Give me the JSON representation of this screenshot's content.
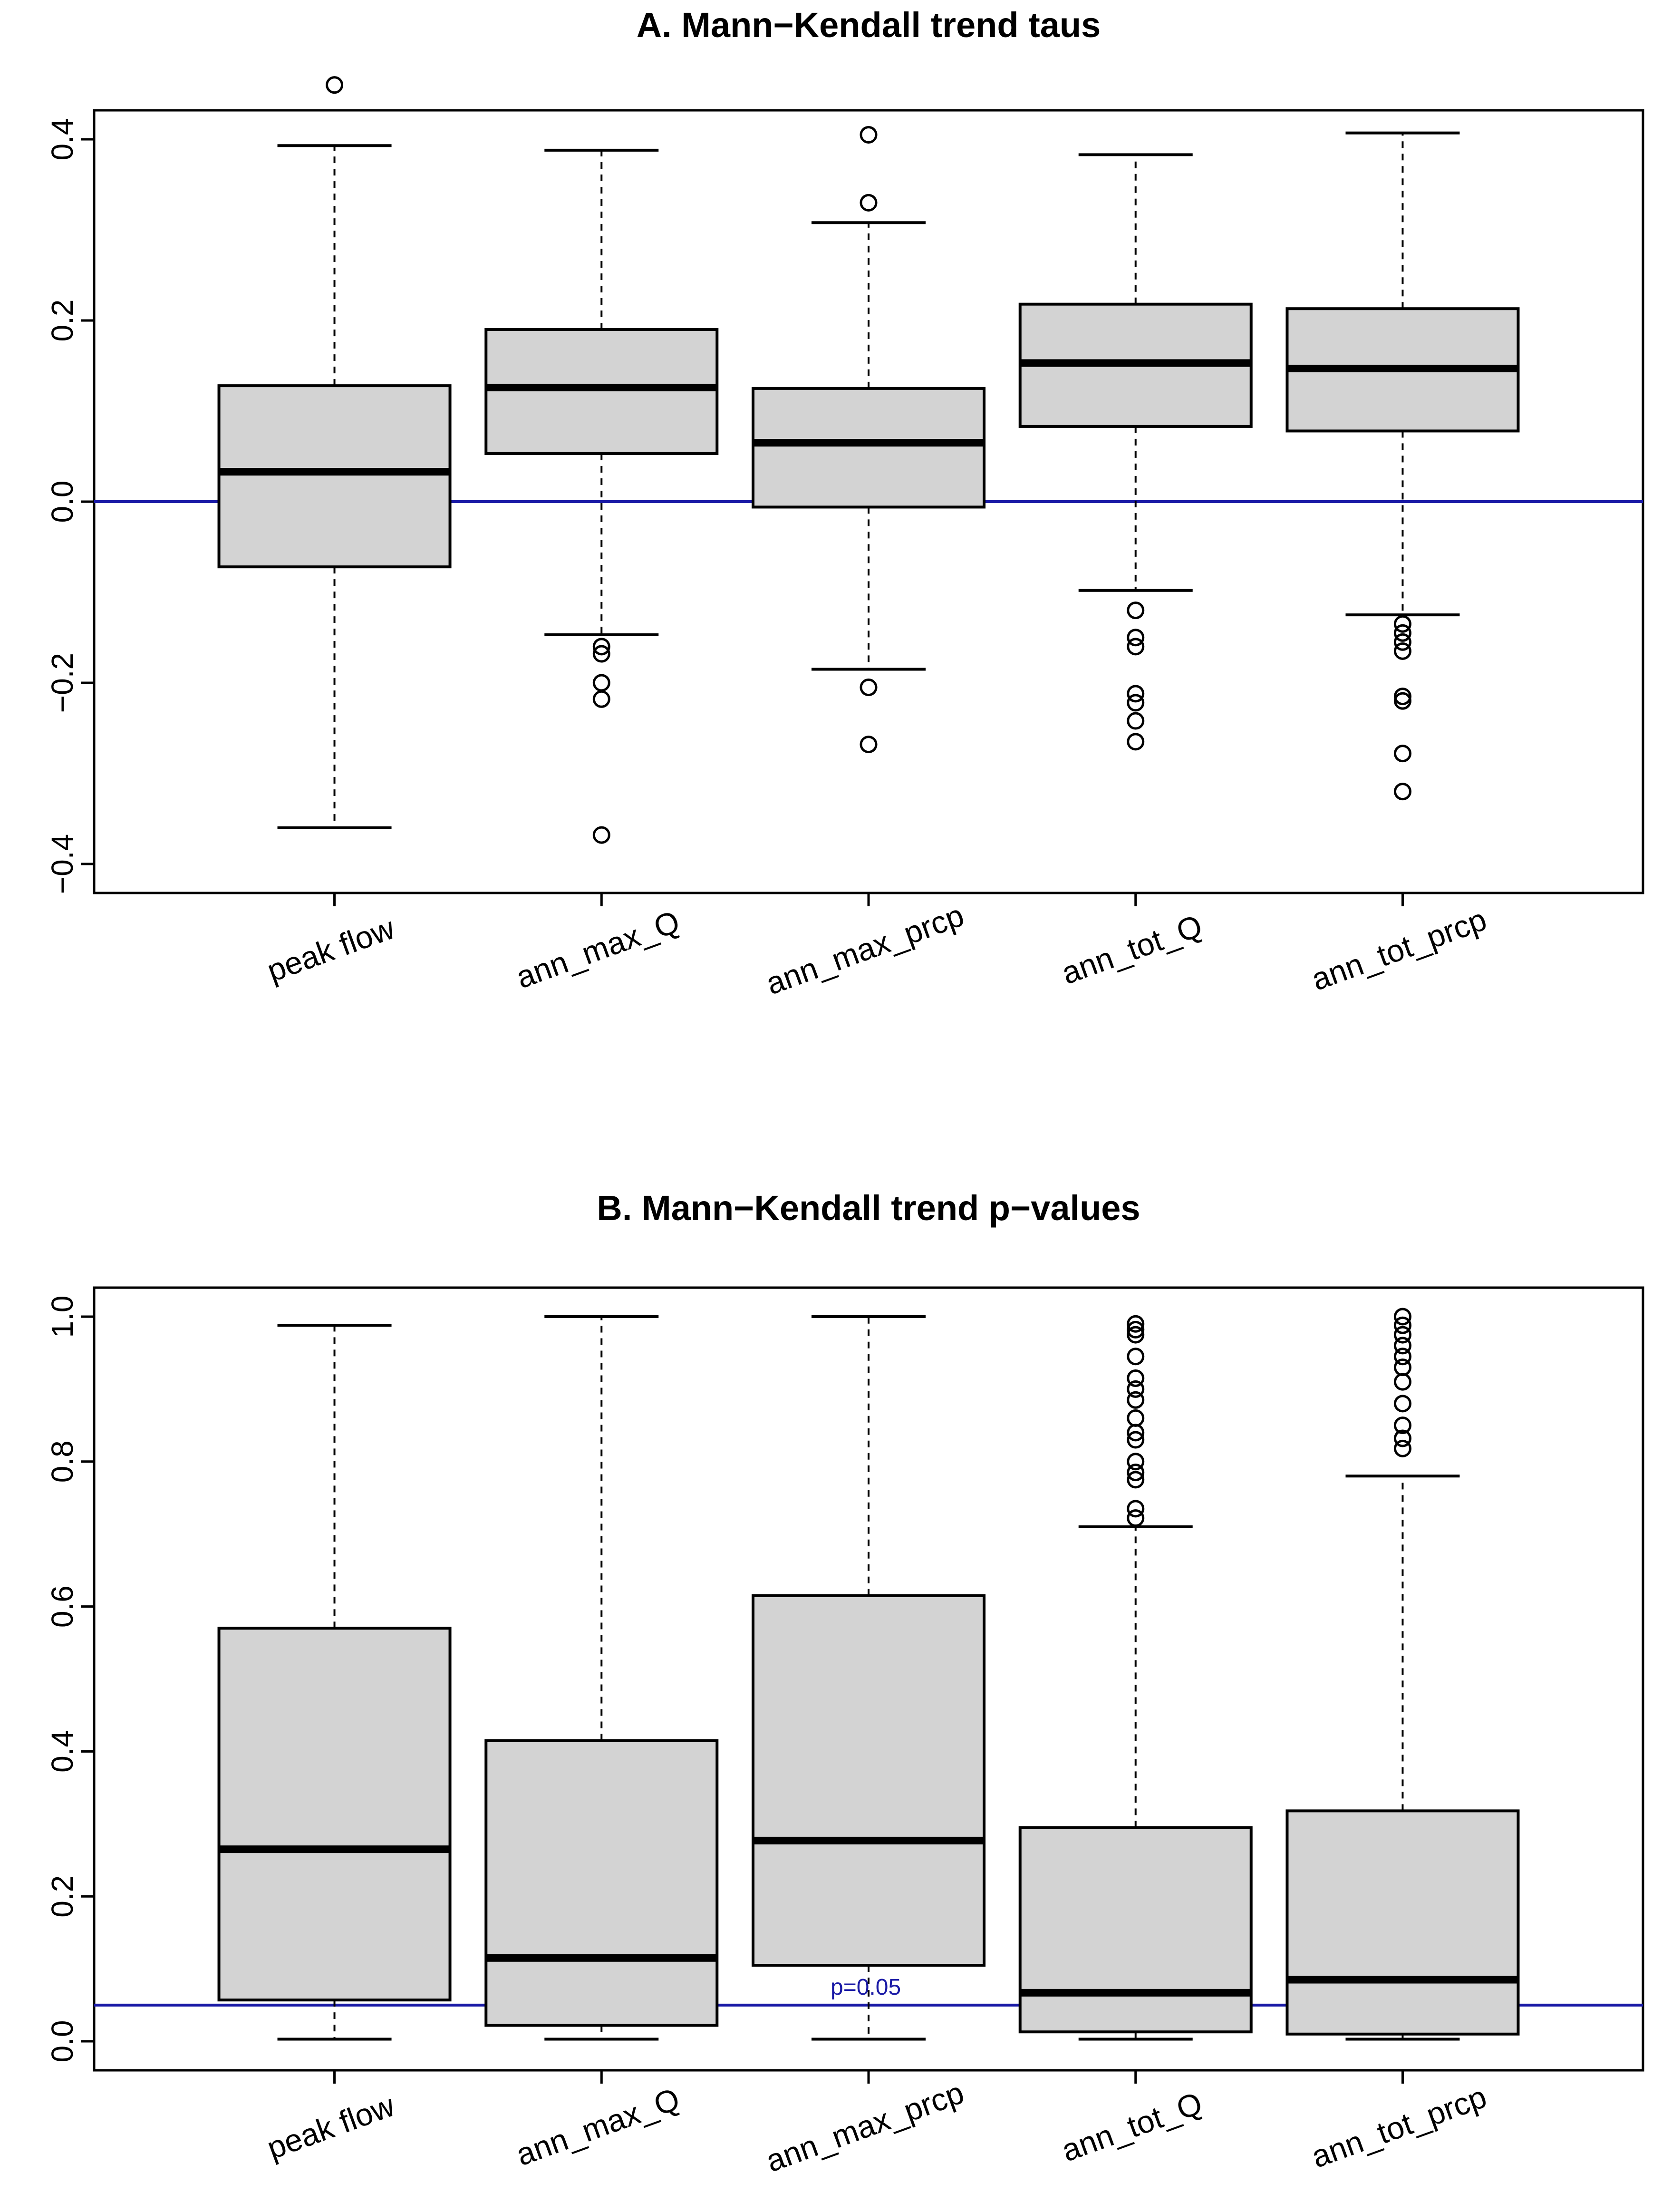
{
  "chart_data": [
    {
      "type": "box",
      "title": "A. Mann−Kendall trend taus",
      "categories": [
        "peak flow",
        "ann_max_Q",
        "ann_max_prcp",
        "ann_tot_Q",
        "ann_tot_prcp"
      ],
      "ylim": [
        -0.4,
        0.4
      ],
      "yticks": [
        "−0.4",
        "−0.2",
        "0.0",
        "0.2",
        "0.4"
      ],
      "reference_line": {
        "y": 0.0,
        "label": "",
        "color": "#1a1aa6"
      },
      "fill_color": "#d3d3d3",
      "boxes": [
        {
          "whisker_low": -0.36,
          "q1": -0.072,
          "median": 0.033,
          "q3": 0.128,
          "whisker_high": 0.393,
          "outliers": [
            0.46
          ]
        },
        {
          "whisker_low": -0.147,
          "q1": 0.053,
          "median": 0.126,
          "q3": 0.19,
          "whisker_high": 0.388,
          "outliers": [
            -0.16,
            -0.168,
            -0.2,
            -0.218,
            -0.368
          ]
        },
        {
          "whisker_low": -0.185,
          "q1": -0.006,
          "median": 0.065,
          "q3": 0.125,
          "whisker_high": 0.308,
          "outliers": [
            0.33,
            0.405,
            -0.205,
            -0.268
          ]
        },
        {
          "whisker_low": -0.098,
          "q1": 0.083,
          "median": 0.153,
          "q3": 0.218,
          "whisker_high": 0.383,
          "outliers": [
            -0.12,
            -0.15,
            -0.16,
            -0.212,
            -0.222,
            -0.242,
            -0.265
          ]
        },
        {
          "whisker_low": -0.125,
          "q1": 0.078,
          "median": 0.147,
          "q3": 0.213,
          "whisker_high": 0.407,
          "outliers": [
            -0.135,
            -0.145,
            -0.155,
            -0.165,
            -0.215,
            -0.22,
            -0.278,
            -0.32
          ]
        }
      ]
    },
    {
      "type": "box",
      "title": "B. Mann−Kendall trend p−values",
      "categories": [
        "peak flow",
        "ann_max_Q",
        "ann_max_prcp",
        "ann_tot_Q",
        "ann_tot_prcp"
      ],
      "ylim": [
        0.0,
        1.0
      ],
      "yticks": [
        "0.0",
        "0.2",
        "0.4",
        "0.6",
        "0.8",
        "1.0"
      ],
      "reference_line": {
        "y": 0.05,
        "label": "p=0.05",
        "color": "#1a1aa6"
      },
      "fill_color": "#d3d3d3",
      "boxes": [
        {
          "whisker_low": 0.003,
          "q1": 0.057,
          "median": 0.265,
          "q3": 0.57,
          "whisker_high": 0.988,
          "outliers": []
        },
        {
          "whisker_low": 0.003,
          "q1": 0.022,
          "median": 0.115,
          "q3": 0.415,
          "whisker_high": 1.0,
          "outliers": []
        },
        {
          "whisker_low": 0.003,
          "q1": 0.105,
          "median": 0.277,
          "q3": 0.615,
          "whisker_high": 1.0,
          "outliers": []
        },
        {
          "whisker_low": 0.003,
          "q1": 0.013,
          "median": 0.067,
          "q3": 0.295,
          "whisker_high": 0.71,
          "outliers": [
            0.722,
            0.735,
            0.775,
            0.785,
            0.8,
            0.83,
            0.84,
            0.86,
            0.885,
            0.9,
            0.915,
            0.945,
            0.975,
            0.982,
            0.99
          ]
        },
        {
          "whisker_low": 0.003,
          "q1": 0.01,
          "median": 0.085,
          "q3": 0.318,
          "whisker_high": 0.78,
          "outliers": [
            0.818,
            0.832,
            0.85,
            0.88,
            0.91,
            0.93,
            0.945,
            0.96,
            0.975,
            0.988,
            1.0
          ]
        }
      ]
    }
  ]
}
